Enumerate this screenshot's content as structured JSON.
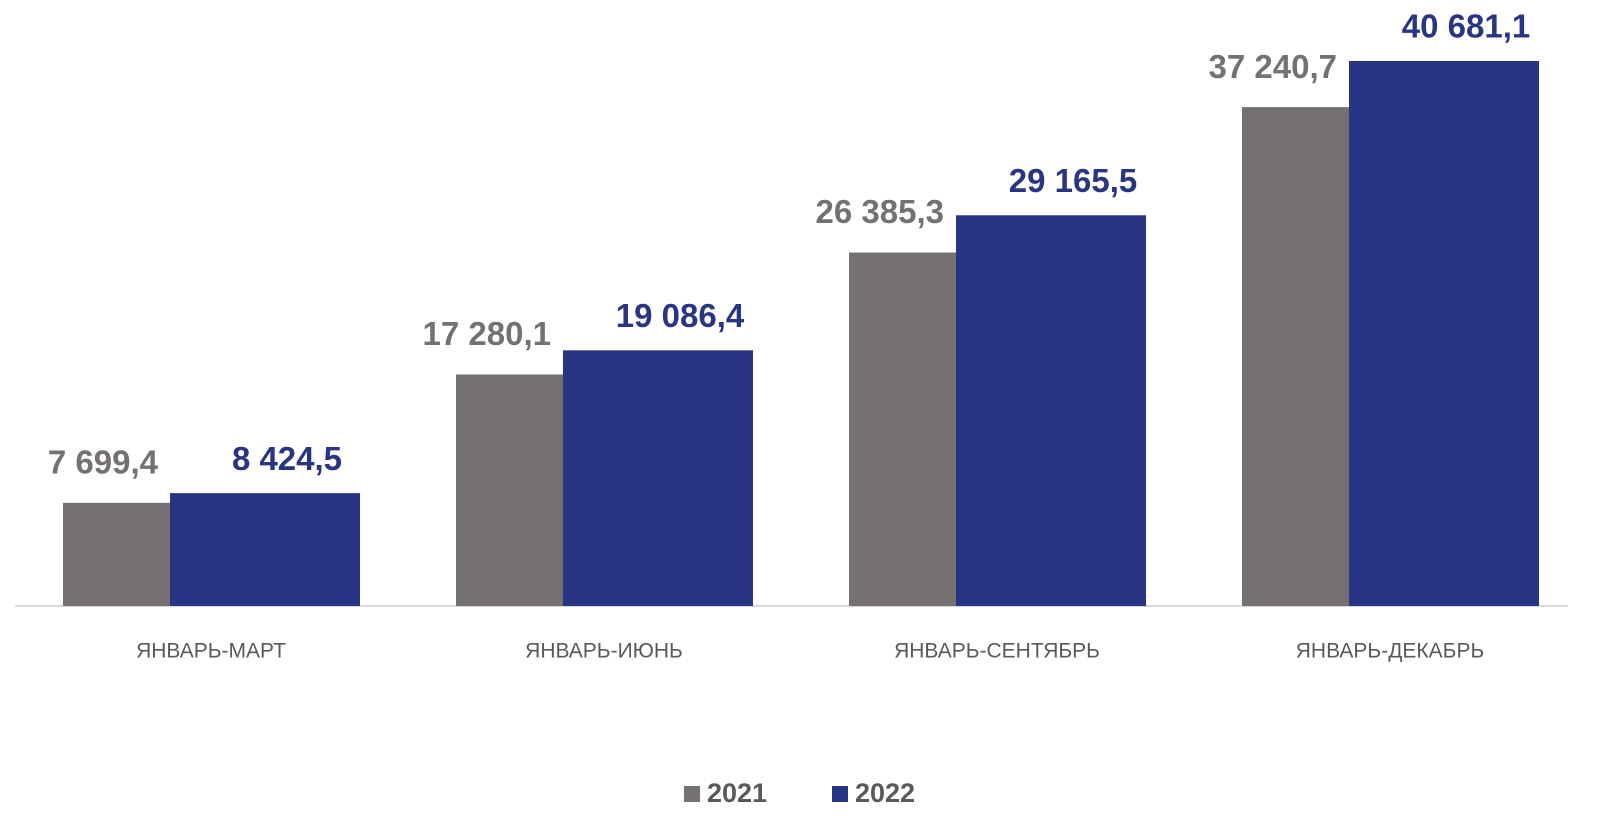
{
  "chart_data": {
    "type": "bar",
    "categories": [
      "ЯНВАРЬ-МАРТ",
      "ЯНВАРЬ-ИЮНЬ",
      "ЯНВАРЬ-СЕНТЯБРЬ",
      "ЯНВАРЬ-ДЕКАБРЬ"
    ],
    "series": [
      {
        "name": "2021",
        "color": "#767171",
        "values": [
          7699.4,
          17280.1,
          26385.3,
          37240.7
        ],
        "value_labels": [
          "7 699,4",
          "17 280,1",
          "26 385,3",
          "37 240,7"
        ]
      },
      {
        "name": "2022",
        "color": "#283583",
        "values": [
          8424.5,
          19086.4,
          29165.5,
          40681.1
        ],
        "value_labels": [
          "8 424,5",
          "19 086,4",
          "29 165,5",
          "40 681,1"
        ]
      }
    ]
  }
}
